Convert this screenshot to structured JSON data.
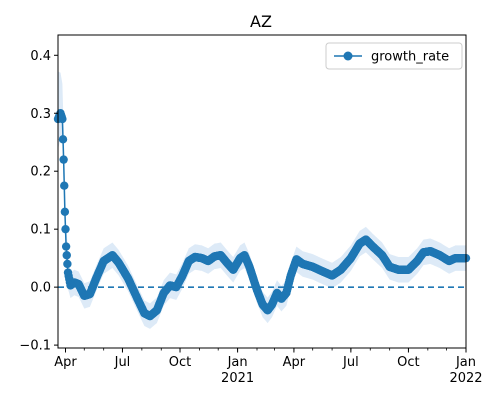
{
  "chart_data": {
    "type": "line",
    "title": "AZ",
    "xlabel": "",
    "ylabel": "",
    "x_range": [
      "2020-03-20",
      "2022-01-01"
    ],
    "ylim": [
      -0.105,
      0.435
    ],
    "y_ticks": [
      -0.1,
      0.0,
      0.1,
      0.2,
      0.3,
      0.4
    ],
    "y_tick_labels": [
      "−0.1",
      "0.0",
      "0.1",
      "0.2",
      "0.3",
      "0.4"
    ],
    "x_major_ticks": [
      {
        "date": "2020-04-01",
        "label": "Apr",
        "sublabel": ""
      },
      {
        "date": "2020-07-01",
        "label": "Jul",
        "sublabel": ""
      },
      {
        "date": "2020-10-01",
        "label": "Oct",
        "sublabel": ""
      },
      {
        "date": "2021-01-01",
        "label": "Jan",
        "sublabel": "2021"
      },
      {
        "date": "2021-04-01",
        "label": "Apr",
        "sublabel": ""
      },
      {
        "date": "2021-07-01",
        "label": "Jul",
        "sublabel": ""
      },
      {
        "date": "2021-10-01",
        "label": "Oct",
        "sublabel": ""
      },
      {
        "date": "2022-01-01",
        "label": "Jan",
        "sublabel": "2022"
      }
    ],
    "reference_line": {
      "y": 0.0,
      "style": "dashed"
    },
    "legend": {
      "placement": "top-right",
      "entries": [
        "growth_rate"
      ]
    },
    "grid": false,
    "colors": {
      "series": "#1f77b4",
      "band": "#cfe1f3"
    },
    "series": [
      {
        "name": "growth_rate",
        "band_width": 0.022,
        "keypoints": [
          {
            "x": "2020-03-20",
            "y": 0.29
          },
          {
            "x": "2020-03-24",
            "y": 0.3
          },
          {
            "x": "2020-03-27",
            "y": 0.29
          },
          {
            "x": "2020-03-29",
            "y": 0.22
          },
          {
            "x": "2020-03-31",
            "y": 0.13
          },
          {
            "x": "2020-04-02",
            "y": 0.07
          },
          {
            "x": "2020-04-05",
            "y": 0.025
          },
          {
            "x": "2020-04-09",
            "y": 0.003
          },
          {
            "x": "2020-04-15",
            "y": 0.008
          },
          {
            "x": "2020-04-22",
            "y": 0.005
          },
          {
            "x": "2020-05-01",
            "y": -0.015
          },
          {
            "x": "2020-05-10",
            "y": -0.012
          },
          {
            "x": "2020-05-20",
            "y": 0.015
          },
          {
            "x": "2020-06-01",
            "y": 0.045
          },
          {
            "x": "2020-06-15",
            "y": 0.055
          },
          {
            "x": "2020-06-25",
            "y": 0.042
          },
          {
            "x": "2020-07-10",
            "y": 0.015
          },
          {
            "x": "2020-07-25",
            "y": -0.02
          },
          {
            "x": "2020-08-05",
            "y": -0.045
          },
          {
            "x": "2020-08-14",
            "y": -0.05
          },
          {
            "x": "2020-08-25",
            "y": -0.04
          },
          {
            "x": "2020-09-05",
            "y": -0.01
          },
          {
            "x": "2020-09-15",
            "y": 0.003
          },
          {
            "x": "2020-09-25",
            "y": 0.0
          },
          {
            "x": "2020-10-05",
            "y": 0.02
          },
          {
            "x": "2020-10-15",
            "y": 0.045
          },
          {
            "x": "2020-10-25",
            "y": 0.052
          },
          {
            "x": "2020-11-05",
            "y": 0.05
          },
          {
            "x": "2020-11-15",
            "y": 0.045
          },
          {
            "x": "2020-11-25",
            "y": 0.053
          },
          {
            "x": "2020-12-05",
            "y": 0.055
          },
          {
            "x": "2020-12-15",
            "y": 0.042
          },
          {
            "x": "2020-12-25",
            "y": 0.03
          },
          {
            "x": "2021-01-05",
            "y": 0.05
          },
          {
            "x": "2021-01-12",
            "y": 0.055
          },
          {
            "x": "2021-01-20",
            "y": 0.035
          },
          {
            "x": "2021-02-01",
            "y": -0.005
          },
          {
            "x": "2021-02-10",
            "y": -0.03
          },
          {
            "x": "2021-02-18",
            "y": -0.04
          },
          {
            "x": "2021-02-25",
            "y": -0.03
          },
          {
            "x": "2021-03-05",
            "y": -0.01
          },
          {
            "x": "2021-03-12",
            "y": -0.02
          },
          {
            "x": "2021-03-20",
            "y": -0.01
          },
          {
            "x": "2021-03-27",
            "y": 0.02
          },
          {
            "x": "2021-04-05",
            "y": 0.048
          },
          {
            "x": "2021-04-15",
            "y": 0.04
          },
          {
            "x": "2021-05-01",
            "y": 0.035
          },
          {
            "x": "2021-05-15",
            "y": 0.028
          },
          {
            "x": "2021-06-01",
            "y": 0.02
          },
          {
            "x": "2021-06-15",
            "y": 0.03
          },
          {
            "x": "2021-07-01",
            "y": 0.05
          },
          {
            "x": "2021-07-15",
            "y": 0.075
          },
          {
            "x": "2021-07-25",
            "y": 0.082
          },
          {
            "x": "2021-08-05",
            "y": 0.07
          },
          {
            "x": "2021-08-20",
            "y": 0.055
          },
          {
            "x": "2021-09-01",
            "y": 0.035
          },
          {
            "x": "2021-09-15",
            "y": 0.03
          },
          {
            "x": "2021-10-01",
            "y": 0.03
          },
          {
            "x": "2021-10-15",
            "y": 0.045
          },
          {
            "x": "2021-10-25",
            "y": 0.06
          },
          {
            "x": "2021-11-05",
            "y": 0.062
          },
          {
            "x": "2021-11-20",
            "y": 0.055
          },
          {
            "x": "2021-12-05",
            "y": 0.045
          },
          {
            "x": "2021-12-15",
            "y": 0.05
          },
          {
            "x": "2022-01-01",
            "y": 0.05
          }
        ]
      }
    ]
  }
}
